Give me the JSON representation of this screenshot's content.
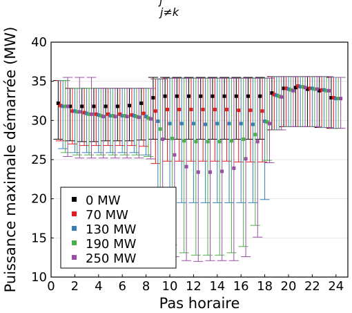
{
  "chart_data": {
    "type": "scatter",
    "title_fragment": "j",
    "subtitle": "j≠k",
    "xlabel": "Pas horaire",
    "ylabel": "Puissance maximale démarrée (MW)",
    "xlim": [
      0,
      25
    ],
    "ylim": [
      10,
      40
    ],
    "xticks": [
      "0",
      "2",
      "4",
      "6",
      "8",
      "10",
      "12",
      "14",
      "16",
      "18",
      "20",
      "22",
      "24"
    ],
    "yticks": [
      "10",
      "15",
      "20",
      "25",
      "30",
      "35",
      "40"
    ],
    "grid": true,
    "legend_position": "bottom-left",
    "marker": "square",
    "error_bars": true,
    "x": [
      1,
      2,
      3,
      4,
      5,
      6,
      7,
      8,
      9,
      10,
      11,
      12,
      13,
      14,
      15,
      16,
      17,
      18,
      19,
      20,
      21,
      22,
      23,
      24
    ],
    "series": [
      {
        "name": "0 MW",
        "color": "#000000",
        "x_offset": -0.4,
        "values": [
          32.2,
          31.8,
          31.8,
          31.8,
          31.8,
          31.8,
          31.9,
          32.2,
          32.9,
          33.1,
          33.1,
          33.1,
          33.1,
          33.1,
          33.1,
          33.1,
          33.1,
          33.1,
          33.5,
          34.1,
          34.2,
          34.0,
          33.8,
          32.9
        ],
        "lower": [
          27.6,
          27.4,
          27.3,
          27.3,
          27.4,
          27.4,
          27.4,
          27.5,
          27.6,
          27.6,
          27.6,
          27.6,
          27.6,
          27.6,
          27.6,
          27.6,
          27.6,
          27.6,
          28.8,
          29.2,
          29.2,
          29.2,
          29.1,
          29.0
        ],
        "upper": [
          35.1,
          34.1,
          34.1,
          34.1,
          34.1,
          34.1,
          34.1,
          34.1,
          35.5,
          35.5,
          35.5,
          35.5,
          35.5,
          35.5,
          35.5,
          35.5,
          35.5,
          35.5,
          35.6,
          35.6,
          35.6,
          35.6,
          35.6,
          35.5
        ]
      },
      {
        "name": "70 MW",
        "color": "#e41a1c",
        "x_offset": -0.2,
        "values": [
          31.9,
          31.2,
          31.0,
          30.8,
          30.8,
          30.8,
          30.7,
          30.9,
          31.2,
          31.4,
          31.4,
          31.4,
          31.4,
          31.4,
          31.4,
          31.3,
          31.3,
          31.2,
          33.3,
          34.1,
          34.4,
          34.1,
          33.9,
          32.9
        ],
        "lower": [
          27.4,
          27.0,
          26.8,
          26.8,
          26.8,
          26.8,
          26.8,
          26.7,
          24.5,
          24.8,
          24.8,
          24.8,
          24.8,
          24.8,
          24.8,
          24.7,
          24.7,
          24.7,
          28.8,
          29.2,
          29.2,
          29.2,
          29.1,
          29.0
        ],
        "upper": [
          35.1,
          34.1,
          34.1,
          34.1,
          34.1,
          34.1,
          34.1,
          34.1,
          35.3,
          35.4,
          35.4,
          35.4,
          35.4,
          35.4,
          35.4,
          35.4,
          35.4,
          35.4,
          35.6,
          35.6,
          35.6,
          35.6,
          35.6,
          35.5
        ]
      },
      {
        "name": "130 MW",
        "color": "#377eb8",
        "x_offset": 0.0,
        "values": [
          31.8,
          31.2,
          30.9,
          30.7,
          30.6,
          30.6,
          30.6,
          30.5,
          29.9,
          29.6,
          29.6,
          29.6,
          29.5,
          29.6,
          29.6,
          29.6,
          29.5,
          29.9,
          33.2,
          34.0,
          34.3,
          34.1,
          33.9,
          32.8
        ],
        "lower": [
          26.4,
          25.9,
          25.9,
          25.9,
          25.9,
          25.9,
          25.9,
          25.6,
          20.1,
          19.5,
          19.5,
          19.5,
          19.5,
          19.5,
          19.5,
          19.5,
          19.5,
          19.9,
          28.8,
          29.2,
          29.2,
          29.2,
          29.1,
          29.0
        ],
        "upper": [
          35.1,
          34.1,
          34.1,
          34.1,
          34.1,
          34.1,
          34.1,
          34.1,
          35.3,
          35.4,
          35.4,
          35.4,
          35.4,
          35.4,
          35.4,
          35.4,
          35.4,
          35.4,
          35.6,
          35.6,
          35.6,
          35.6,
          35.6,
          35.5
        ]
      },
      {
        "name": "190 MW",
        "color": "#4daf4a",
        "x_offset": 0.2,
        "values": [
          31.8,
          31.1,
          30.8,
          30.6,
          30.6,
          30.6,
          30.5,
          30.3,
          28.9,
          27.7,
          27.4,
          27.3,
          27.3,
          27.3,
          27.4,
          27.6,
          28.2,
          29.8,
          33.1,
          33.9,
          34.3,
          34.0,
          33.8,
          32.8
        ],
        "lower": [
          25.9,
          25.6,
          25.6,
          25.6,
          25.6,
          25.6,
          25.6,
          25.4,
          17.4,
          14.1,
          13.1,
          12.8,
          12.8,
          12.8,
          13.1,
          13.9,
          16.6,
          24.9,
          28.8,
          29.2,
          29.2,
          29.2,
          29.1,
          29.0
        ],
        "upper": [
          35.1,
          34.1,
          34.1,
          34.1,
          34.1,
          34.1,
          34.1,
          34.1,
          35.3,
          35.4,
          35.4,
          35.4,
          35.4,
          35.4,
          35.4,
          35.4,
          35.4,
          35.4,
          35.6,
          35.6,
          35.6,
          35.6,
          35.6,
          35.5
        ]
      },
      {
        "name": "250 MW",
        "color": "#984ea3",
        "x_offset": 0.4,
        "values": [
          31.8,
          31.1,
          30.8,
          30.5,
          30.5,
          30.5,
          30.4,
          30.2,
          27.6,
          25.6,
          24.1,
          23.4,
          23.4,
          23.5,
          23.9,
          25.1,
          27.3,
          29.6,
          33.0,
          33.8,
          34.2,
          34.0,
          33.8,
          32.8
        ],
        "lower": [
          25.4,
          25.2,
          25.2,
          25.2,
          25.2,
          25.2,
          25.2,
          25.1,
          15.9,
          12.6,
          12.1,
          12.0,
          12.1,
          12.1,
          12.1,
          12.6,
          15.1,
          24.6,
          28.8,
          29.2,
          29.2,
          29.2,
          29.1,
          29.0
        ],
        "upper": [
          35.5,
          35.5,
          35.5,
          34.1,
          34.1,
          34.1,
          34.1,
          34.1,
          35.3,
          35.4,
          35.4,
          35.4,
          35.4,
          35.4,
          35.4,
          35.4,
          35.4,
          35.4,
          35.6,
          35.6,
          35.6,
          35.6,
          35.6,
          35.5
        ]
      }
    ]
  }
}
